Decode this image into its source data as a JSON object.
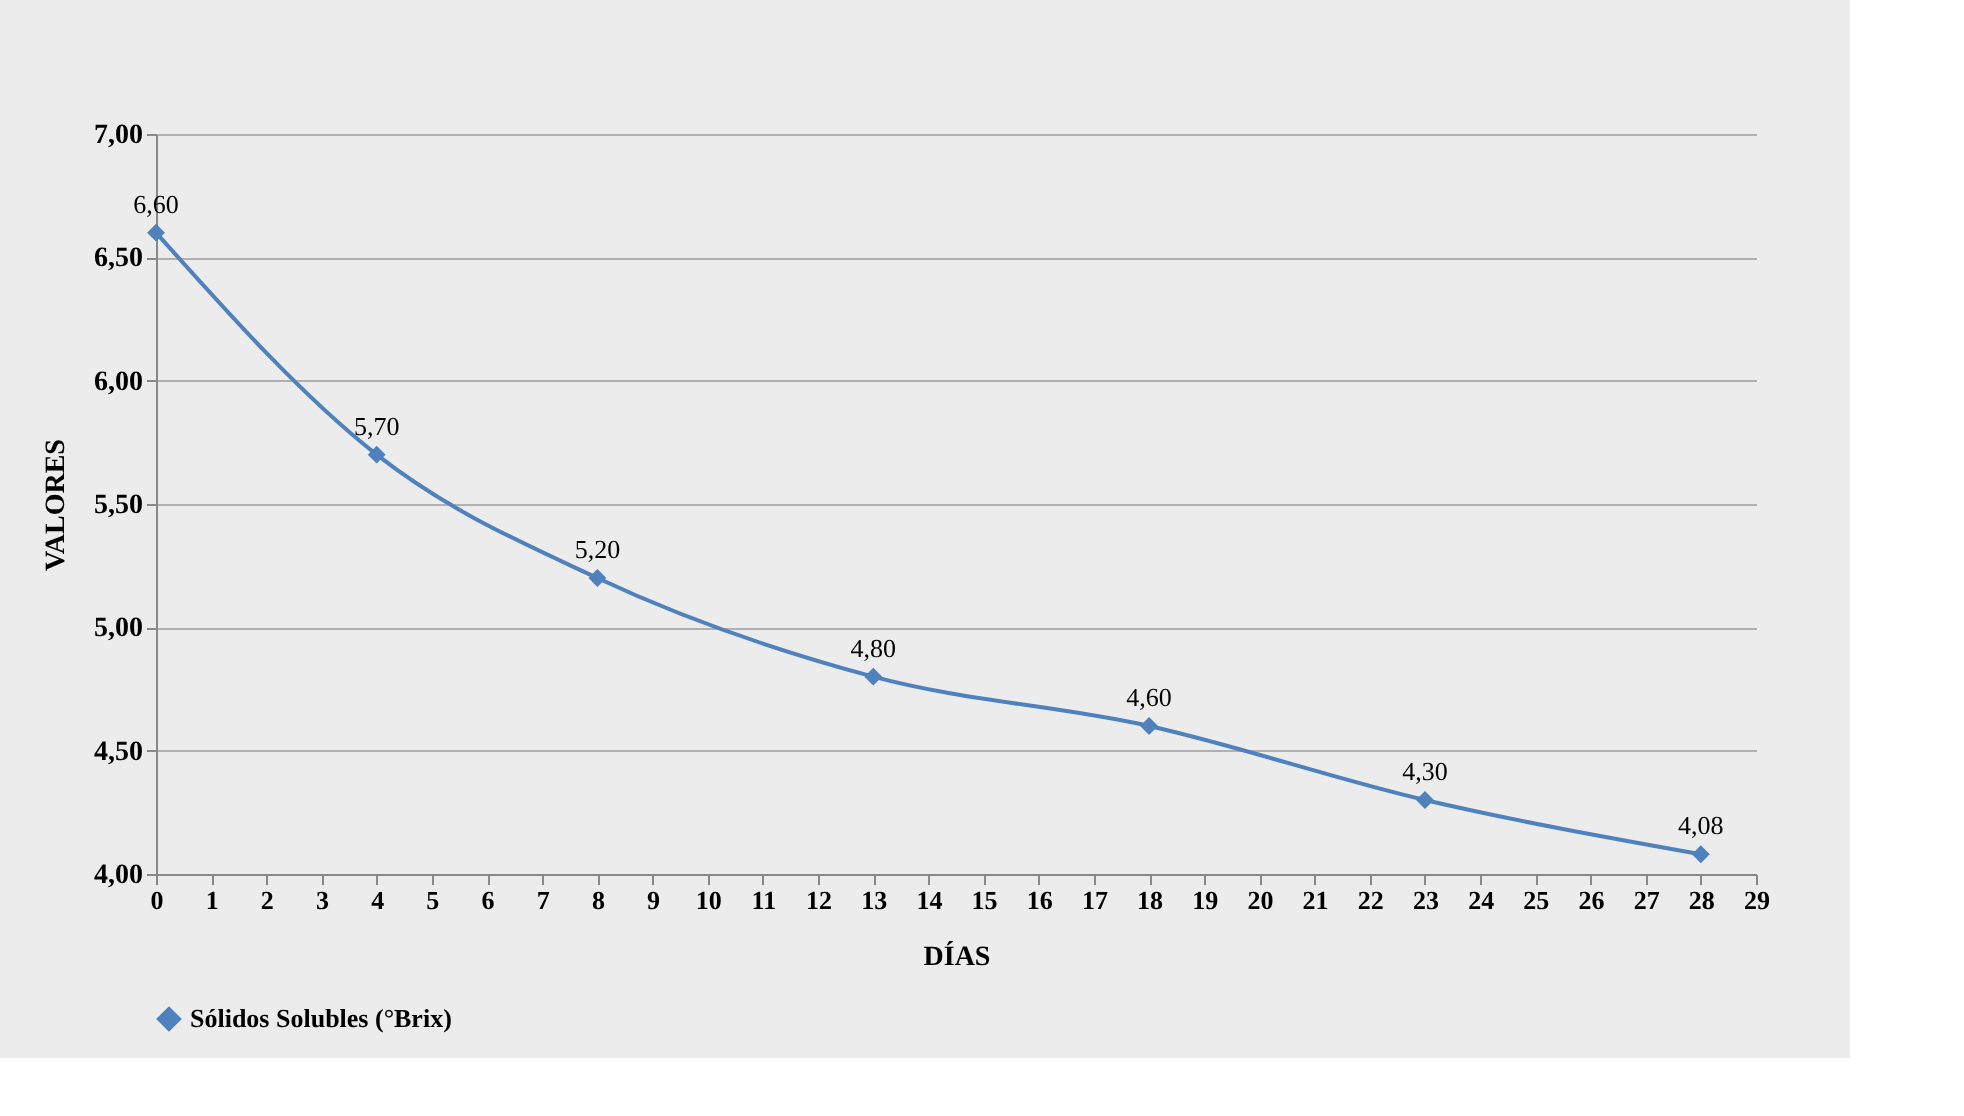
{
  "chart_data": {
    "type": "line",
    "xlabel": "DÍAS",
    "ylabel": "VALORES",
    "x": [
      0,
      4,
      8,
      13,
      18,
      23,
      28
    ],
    "series": [
      {
        "name": "Sólidos Solubles (°Brix)",
        "color": "#4f81bd",
        "values": [
          6.6,
          5.7,
          5.2,
          4.8,
          4.6,
          4.3,
          4.08
        ],
        "value_labels": [
          "6,60",
          "5,70",
          "5,20",
          "4,80",
          "4,60",
          "4,30",
          "4,08"
        ]
      }
    ],
    "xlim": [
      0,
      29
    ],
    "xticks": [
      0,
      1,
      2,
      3,
      4,
      5,
      6,
      7,
      8,
      9,
      10,
      11,
      12,
      13,
      14,
      15,
      16,
      17,
      18,
      19,
      20,
      21,
      22,
      23,
      24,
      25,
      26,
      27,
      28,
      29
    ],
    "ylim": [
      4,
      7
    ],
    "yticks": [
      {
        "value": 4,
        "label": "4,00"
      },
      {
        "value": 4.5,
        "label": "4,50"
      },
      {
        "value": 5,
        "label": "5,00"
      },
      {
        "value": 5.5,
        "label": "5,50"
      },
      {
        "value": 6,
        "label": "6,00"
      },
      {
        "value": 6.5,
        "label": "6,50"
      },
      {
        "value": 7,
        "label": "7,00"
      }
    ],
    "grid": "y",
    "legend": "bottom",
    "marker": "diamond",
    "line_style": "solid"
  }
}
